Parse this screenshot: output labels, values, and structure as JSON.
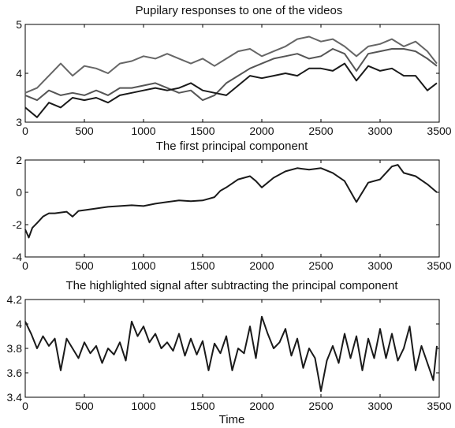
{
  "chart_data": [
    {
      "type": "line",
      "title": "Pupilary responses to one of the videos",
      "xlabel": "",
      "ylabel": "",
      "xlim": [
        0,
        3500
      ],
      "ylim": [
        3,
        5
      ],
      "xticks": [
        "0",
        "500",
        "1000",
        "1500",
        "2000",
        "2500",
        "3000",
        "3500"
      ],
      "yticks": [
        "3",
        "4",
        "5"
      ],
      "grid": false,
      "series": [
        {
          "color": "#666666",
          "x": [
            0,
            100,
            200,
            300,
            400,
            500,
            600,
            700,
            800,
            900,
            1000,
            1100,
            1200,
            1300,
            1400,
            1500,
            1600,
            1700,
            1800,
            1900,
            2000,
            2100,
            2200,
            2300,
            2400,
            2500,
            2600,
            2700,
            2800,
            2900,
            3000,
            3100,
            3200,
            3300,
            3400,
            3480
          ],
          "values": [
            3.6,
            3.7,
            3.95,
            4.2,
            3.95,
            4.15,
            4.1,
            4.0,
            4.2,
            4.25,
            4.35,
            4.3,
            4.4,
            4.3,
            4.2,
            4.3,
            4.15,
            4.3,
            4.45,
            4.5,
            4.35,
            4.45,
            4.55,
            4.7,
            4.75,
            4.65,
            4.7,
            4.55,
            4.35,
            4.55,
            4.6,
            4.7,
            4.55,
            4.65,
            4.45,
            4.2
          ]
        },
        {
          "color": "#555555",
          "x": [
            0,
            100,
            200,
            300,
            400,
            500,
            600,
            700,
            800,
            900,
            1000,
            1100,
            1200,
            1300,
            1400,
            1500,
            1600,
            1700,
            1800,
            1900,
            2000,
            2100,
            2200,
            2300,
            2400,
            2500,
            2600,
            2700,
            2800,
            2900,
            3000,
            3100,
            3200,
            3300,
            3400,
            3480
          ],
          "values": [
            3.55,
            3.45,
            3.65,
            3.55,
            3.6,
            3.55,
            3.65,
            3.55,
            3.7,
            3.7,
            3.75,
            3.8,
            3.7,
            3.6,
            3.65,
            3.45,
            3.55,
            3.8,
            3.95,
            4.1,
            4.2,
            4.3,
            4.35,
            4.4,
            4.3,
            4.35,
            4.5,
            4.4,
            4.05,
            4.4,
            4.45,
            4.5,
            4.5,
            4.45,
            4.3,
            4.15
          ]
        },
        {
          "color": "#1a1a1a",
          "x": [
            0,
            100,
            200,
            300,
            400,
            500,
            600,
            700,
            800,
            900,
            1000,
            1100,
            1200,
            1300,
            1400,
            1500,
            1600,
            1700,
            1800,
            1900,
            2000,
            2100,
            2200,
            2300,
            2400,
            2500,
            2600,
            2700,
            2800,
            2900,
            3000,
            3100,
            3200,
            3300,
            3400,
            3480
          ],
          "values": [
            3.3,
            3.1,
            3.4,
            3.3,
            3.5,
            3.45,
            3.5,
            3.4,
            3.55,
            3.6,
            3.65,
            3.7,
            3.65,
            3.7,
            3.8,
            3.65,
            3.6,
            3.55,
            3.75,
            3.95,
            3.9,
            3.95,
            4.0,
            3.95,
            4.1,
            4.1,
            4.05,
            4.2,
            3.85,
            4.15,
            4.05,
            4.1,
            3.95,
            3.95,
            3.65,
            3.8
          ]
        }
      ]
    },
    {
      "type": "line",
      "title": "The first principal component",
      "xlabel": "",
      "ylabel": "",
      "xlim": [
        0,
        3500
      ],
      "ylim": [
        -4,
        2
      ],
      "xticks": [
        "0",
        "500",
        "1000",
        "1500",
        "2000",
        "2500",
        "3000",
        "3500"
      ],
      "yticks": [
        "-4",
        "-2",
        "0",
        "2"
      ],
      "grid": false,
      "series": [
        {
          "color": "#1a1a1a",
          "x": [
            0,
            30,
            60,
            100,
            150,
            200,
            250,
            300,
            350,
            400,
            450,
            500,
            600,
            700,
            800,
            900,
            1000,
            1100,
            1200,
            1300,
            1400,
            1500,
            1600,
            1650,
            1700,
            1800,
            1900,
            1950,
            2000,
            2100,
            2200,
            2300,
            2400,
            2500,
            2600,
            2700,
            2800,
            2900,
            3000,
            3100,
            3150,
            3200,
            3300,
            3400,
            3480
          ],
          "values": [
            -2.3,
            -2.8,
            -2.2,
            -1.9,
            -1.5,
            -1.3,
            -1.3,
            -1.25,
            -1.2,
            -1.5,
            -1.15,
            -1.1,
            -1.0,
            -0.9,
            -0.85,
            -0.8,
            -0.85,
            -0.7,
            -0.6,
            -0.5,
            -0.55,
            -0.5,
            -0.3,
            0.1,
            0.3,
            0.8,
            1.0,
            0.7,
            0.3,
            0.9,
            1.3,
            1.5,
            1.4,
            1.5,
            1.2,
            0.7,
            -0.6,
            0.6,
            0.8,
            1.6,
            1.7,
            1.2,
            1.0,
            0.5,
            0.0
          ]
        }
      ]
    },
    {
      "type": "line",
      "title": "The highlighted signal after subtracting the principal component",
      "xlabel": "Time",
      "ylabel": "",
      "xlim": [
        0,
        3500
      ],
      "ylim": [
        3.4,
        4.2
      ],
      "xticks": [
        "0",
        "500",
        "1000",
        "1500",
        "2000",
        "2500",
        "3000",
        "3500"
      ],
      "yticks": [
        "3.4",
        "3.6",
        "3.8",
        "4",
        "4.2"
      ],
      "grid": false,
      "series": [
        {
          "color": "#1a1a1a",
          "x": [
            0,
            50,
            100,
            150,
            200,
            250,
            300,
            350,
            400,
            450,
            500,
            550,
            600,
            650,
            700,
            750,
            800,
            850,
            900,
            950,
            1000,
            1050,
            1100,
            1150,
            1200,
            1250,
            1300,
            1350,
            1400,
            1450,
            1500,
            1550,
            1600,
            1650,
            1700,
            1750,
            1800,
            1850,
            1900,
            1950,
            2000,
            2050,
            2100,
            2150,
            2200,
            2250,
            2300,
            2350,
            2400,
            2450,
            2500,
            2550,
            2600,
            2650,
            2700,
            2750,
            2800,
            2850,
            2900,
            2950,
            3000,
            3050,
            3100,
            3150,
            3200,
            3250,
            3300,
            3350,
            3400,
            3450,
            3480
          ],
          "values": [
            4.02,
            3.92,
            3.8,
            3.9,
            3.82,
            3.88,
            3.62,
            3.88,
            3.8,
            3.72,
            3.85,
            3.76,
            3.82,
            3.68,
            3.8,
            3.75,
            3.85,
            3.7,
            4.02,
            3.9,
            3.98,
            3.85,
            3.92,
            3.8,
            3.85,
            3.78,
            3.92,
            3.74,
            3.88,
            3.75,
            3.86,
            3.62,
            3.84,
            3.76,
            3.9,
            3.62,
            3.8,
            3.76,
            3.98,
            3.72,
            4.06,
            3.92,
            3.8,
            3.85,
            3.96,
            3.74,
            3.88,
            3.64,
            3.8,
            3.72,
            3.45,
            3.7,
            3.82,
            3.68,
            3.92,
            3.72,
            3.9,
            3.62,
            3.88,
            3.72,
            3.96,
            3.72,
            3.92,
            3.7,
            3.8,
            3.98,
            3.62,
            3.82,
            3.68,
            3.54,
            3.82
          ]
        }
      ]
    }
  ]
}
